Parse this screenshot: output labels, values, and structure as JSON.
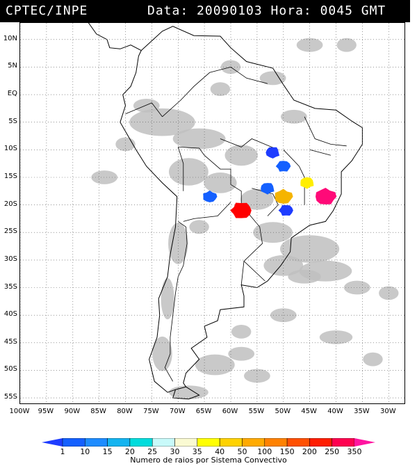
{
  "header": {
    "left": "CPTEC/INPE",
    "right": "Data: 20090103 Hora: 0045 GMT"
  },
  "map": {
    "lat_ticks": [
      "10N",
      "5N",
      "EQ",
      "5S",
      "10S",
      "15S",
      "20S",
      "25S",
      "30S",
      "35S",
      "40S",
      "45S",
      "50S",
      "55S"
    ],
    "lon_ticks": [
      "100W",
      "95W",
      "90W",
      "85W",
      "80W",
      "75W",
      "70W",
      "65W",
      "60W",
      "55W",
      "50W",
      "45W",
      "40W",
      "35W",
      "30W"
    ],
    "lat_values": [
      10,
      5,
      0,
      -5,
      -10,
      -15,
      -20,
      -25,
      -30,
      -35,
      -40,
      -45,
      -50,
      -55
    ],
    "lon_values": [
      -100,
      -95,
      -90,
      -85,
      -80,
      -75,
      -70,
      -65,
      -60,
      -55,
      -50,
      -45,
      -40,
      -35,
      -30
    ],
    "extent": {
      "lon_min": -100,
      "lon_max": -27,
      "lat_min": -56,
      "lat_max": 13
    },
    "gridlines": "dotted",
    "cloud_color": "#c0c0c0",
    "land_outline_color": "#000000"
  },
  "systems": [
    {
      "lon": -52,
      "lat": -10.5,
      "category": "1",
      "color": "#1e3cff"
    },
    {
      "lon": -50,
      "lat": -13,
      "category": "10",
      "color": "#1460ff"
    },
    {
      "lon": -64,
      "lat": -18.5,
      "category": "10",
      "color": "#1460ff"
    },
    {
      "lon": -53,
      "lat": -17,
      "category": "10",
      "color": "#1460ff"
    },
    {
      "lon": -49.5,
      "lat": -21,
      "category": "1",
      "color": "#1e3cff"
    },
    {
      "lon": -50,
      "lat": -18.5,
      "category": "50",
      "color": "#f5b400"
    },
    {
      "lon": -45.5,
      "lat": -16,
      "category": "40",
      "color": "#ffee00"
    },
    {
      "lon": -58,
      "lat": -21,
      "category": "250",
      "color": "#ff0000"
    },
    {
      "lon": -42,
      "lat": -18.5,
      "category": "350",
      "color": "#ff0a78"
    }
  ],
  "colorbar": {
    "labels": [
      "1",
      "10",
      "15",
      "20",
      "25",
      "30",
      "35",
      "40",
      "50",
      "100",
      "150",
      "200",
      "250",
      "350"
    ],
    "colors": [
      "#1e3cff",
      "#1460ff",
      "#1e8cff",
      "#14b4f0",
      "#00dcdc",
      "#c8fafa",
      "#fafad2",
      "#ffff00",
      "#ffd200",
      "#ffaa00",
      "#ff8200",
      "#ff5000",
      "#ff1e00",
      "#ff0050",
      "#ff14a0"
    ],
    "caption": "Numero de raios por Sistema Convectivo"
  }
}
